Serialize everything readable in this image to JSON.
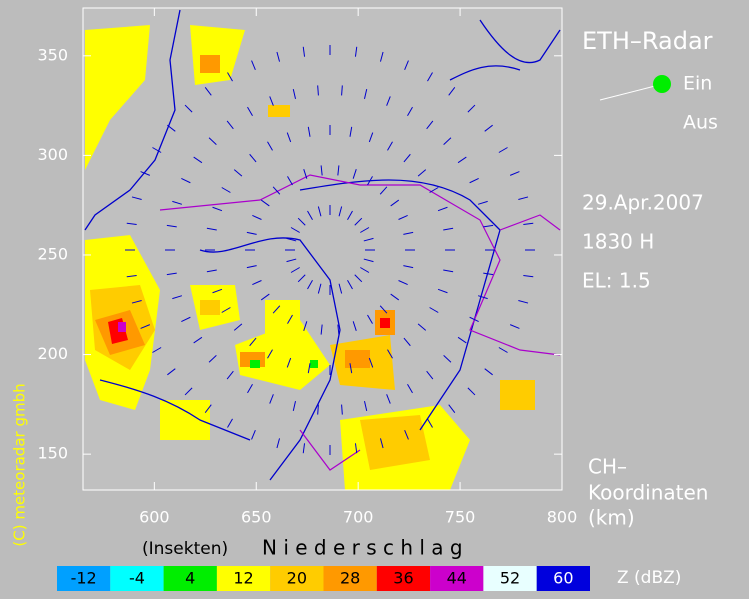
{
  "title": "ETH–Radar",
  "switch": {
    "on": "Ein",
    "off": "Aus"
  },
  "date": "29.Apr.2007",
  "time": "1830 H",
  "elevation": "EL: 1.5",
  "axes": {
    "xlim": [
      565,
      800
    ],
    "ylim": [
      132,
      374
    ],
    "xticks": [
      600,
      650,
      700,
      750,
      800
    ],
    "yticks": [
      150,
      200,
      250,
      300,
      350
    ],
    "unit_label": [
      "CH–",
      "Koordinaten",
      "(km)"
    ]
  },
  "copyright": "(C) meteoradar gmbh",
  "scale": {
    "left_label": "(Insekten)",
    "right_label": "N i e d e r s c h l a g",
    "unit": "Z  (dBZ)",
    "levels": [
      {
        "value": -12,
        "color": "#00a0ff"
      },
      {
        "value": -4,
        "color": "#00ffff"
      },
      {
        "value": 4,
        "color": "#00ee00"
      },
      {
        "value": 12,
        "color": "#ffff00"
      },
      {
        "value": 20,
        "color": "#ffcc00"
      },
      {
        "value": 28,
        "color": "#ff9900"
      },
      {
        "value": 36,
        "color": "#ff0000"
      },
      {
        "value": 44,
        "color": "#cc00cc"
      },
      {
        "value": 52,
        "color": "#e8ffff"
      },
      {
        "value": 60,
        "color": "#0000dd"
      }
    ]
  }
}
